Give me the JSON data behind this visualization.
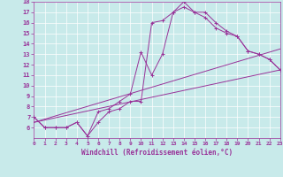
{
  "title": "",
  "xlabel": "Windchill (Refroidissement éolien,°C)",
  "background_color": "#c8eaea",
  "line_color": "#993399",
  "xlim": [
    0,
    23
  ],
  "ylim": [
    5,
    18
  ],
  "xticks": [
    0,
    1,
    2,
    3,
    4,
    5,
    6,
    7,
    8,
    9,
    10,
    11,
    12,
    13,
    14,
    15,
    16,
    17,
    18,
    19,
    20,
    21,
    22,
    23
  ],
  "yticks": [
    6,
    7,
    8,
    9,
    10,
    11,
    12,
    13,
    14,
    15,
    16,
    17,
    18
  ],
  "line1_x": [
    0,
    1,
    2,
    3,
    4,
    5,
    6,
    7,
    8,
    9,
    10,
    11,
    12,
    13,
    14,
    15,
    16,
    17,
    18,
    19,
    20,
    21,
    22,
    23
  ],
  "line1_y": [
    7,
    6,
    6,
    6,
    6.5,
    5.2,
    7.5,
    7.8,
    8.5,
    9.2,
    13.2,
    11.0,
    13.0,
    17.0,
    18.0,
    17.0,
    17.0,
    16.0,
    15.2,
    14.7,
    13.3,
    13.0,
    12.5,
    11.5
  ],
  "line2_x": [
    0,
    1,
    2,
    3,
    4,
    5,
    6,
    7,
    8,
    9,
    10,
    11,
    12,
    13,
    14,
    15,
    16,
    17,
    18,
    19,
    20,
    21,
    22,
    23
  ],
  "line2_y": [
    7,
    6,
    6,
    6,
    6.5,
    5.2,
    6.5,
    7.5,
    7.8,
    8.5,
    8.5,
    16.0,
    16.2,
    17.0,
    17.5,
    17.0,
    16.5,
    15.5,
    15.0,
    14.7,
    13.3,
    13.0,
    12.5,
    11.5
  ],
  "line3_x": [
    0,
    23
  ],
  "line3_y": [
    6.5,
    11.5
  ],
  "line4_x": [
    0,
    23
  ],
  "line4_y": [
    6.5,
    13.5
  ]
}
